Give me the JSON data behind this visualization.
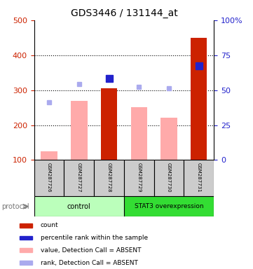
{
  "title": "GDS3446 / 131144_at",
  "samples": [
    "GSM287726",
    "GSM287727",
    "GSM287728",
    "GSM287729",
    "GSM287730",
    "GSM287731"
  ],
  "value_bars": [
    125,
    270,
    305,
    252,
    222,
    450
  ],
  "value_colors": [
    "#ffaaaa",
    "#ffaaaa",
    "#cc2200",
    "#ffaaaa",
    "#ffaaaa",
    "#cc2200"
  ],
  "rank_dots": [
    265,
    318,
    333,
    310,
    305,
    370
  ],
  "rank_dot_colors": [
    "#aaaaee",
    "#aaaaee",
    "#2222cc",
    "#aaaaee",
    "#aaaaee",
    "#2222cc"
  ],
  "rank_dot_sizes_pts": [
    5,
    5,
    7,
    5,
    5,
    7
  ],
  "ylim_left": [
    100,
    500
  ],
  "ylim_right": [
    0,
    100
  ],
  "yticks_left": [
    100,
    200,
    300,
    400,
    500
  ],
  "yticks_right": [
    0,
    25,
    50,
    75,
    100
  ],
  "ytick_labels_right": [
    "0",
    "25",
    "50",
    "75",
    "100%"
  ],
  "control_label": "control",
  "overexp_label": "STAT3 overexpression",
  "protocol_label": "protocol",
  "control_bg": "#bbffbb",
  "overexp_bg": "#33dd33",
  "sample_box_bg": "#cccccc",
  "bar_bottom": 100,
  "title_fontsize": 10,
  "axis_color_left": "#cc2200",
  "axis_color_right": "#2222cc",
  "legend": [
    {
      "color": "#cc2200",
      "label": "count"
    },
    {
      "color": "#2222cc",
      "label": "percentile rank within the sample"
    },
    {
      "color": "#ffaaaa",
      "label": "value, Detection Call = ABSENT"
    },
    {
      "color": "#aaaaee",
      "label": "rank, Detection Call = ABSENT"
    }
  ]
}
